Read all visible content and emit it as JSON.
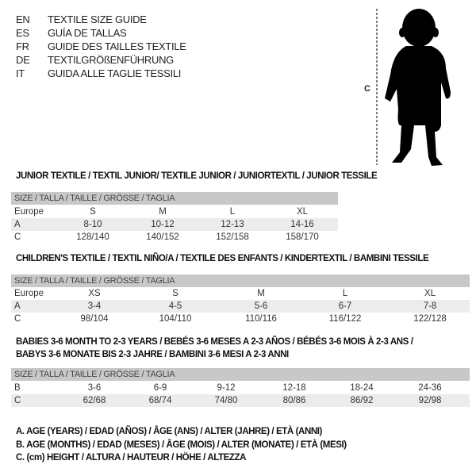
{
  "languages": [
    {
      "code": "EN",
      "text": "TEXTILE SIZE GUIDE"
    },
    {
      "code": "ES",
      "text": "GUÍA DE TALLAS"
    },
    {
      "code": "FR",
      "text": "GUIDE DES TAILLES TEXTILE"
    },
    {
      "code": "DE",
      "text": "TEXTILGRÖßENFÜHRUNG"
    },
    {
      "code": "IT",
      "text": "GUIDA ALLE TAGLIE TESSILI"
    }
  ],
  "figure": {
    "measure_label": "C",
    "icon": "child-silhouette"
  },
  "junior": {
    "title": "JUNIOR TEXTILE / TEXTIL JUNIOR/ TEXTILE JUNIOR / JUNIORTEXTIL / JUNIOR TESSILE",
    "header": "SIZE / TALLA / TAILLE / GRÖSSE / TAGLIA",
    "rows": [
      {
        "label": "Europe",
        "values": [
          "S",
          "M",
          "L",
          "XL"
        ]
      },
      {
        "label": "A",
        "values": [
          "8-10",
          "10-12",
          "12-13",
          "14-16"
        ]
      },
      {
        "label": "C",
        "values": [
          "128/140",
          "140/152",
          "152/158",
          "158/170"
        ]
      }
    ]
  },
  "children": {
    "title": "CHILDREN'S TEXTILE / TEXTIL NIÑO/A / TEXTILE DES ENFANTS / KINDERTEXTIL / BAMBINI TESSILE",
    "header": "SIZE / TALLA / TAILLE / GRÖSSE / TAGLIA",
    "rows": [
      {
        "label": "Europe",
        "values": [
          "XS",
          "S",
          "M",
          "L",
          "XL"
        ]
      },
      {
        "label": "A",
        "values": [
          "3-4",
          "4-5",
          "5-6",
          "6-7",
          "7-8"
        ]
      },
      {
        "label": "C",
        "values": [
          "98/104",
          "104/110",
          "110/116",
          "116/122",
          "122/128"
        ]
      }
    ]
  },
  "babies": {
    "title_line1": "BABIES 3-6 MONTH TO 2-3 YEARS / BEBÉS 3-6 MESES A 2-3 AÑOS / BÉBÉS 3-6 MOIS À 2-3 ANS /",
    "title_line2": "BABYS 3-6 MONATE BIS 2-3 JAHRE / BAMBINI 3-6 MESI A 2-3 ANNI",
    "header": "SIZE / TALLA / TAILLE / GRÖSSE / TAGLIA",
    "rows": [
      {
        "label": "B",
        "values": [
          "3-6",
          "6-9",
          "9-12",
          "12-18",
          "18-24",
          "24-36"
        ]
      },
      {
        "label": "C",
        "values": [
          "62/68",
          "68/74",
          "74/80",
          "80/86",
          "86/92",
          "92/98"
        ]
      }
    ]
  },
  "legend": [
    "A. AGE (YEARS) / EDAD (AÑOS) / ÂGE (ANS) / ALTER (JAHRE) / ETÀ (ANNI)",
    "B. AGE (MONTHS) / EDAD (MESES) / ÂGE (MOIS) / ALTER (MONATE) / ETÀ (MESI)",
    "C. (cm) HEIGHT / ALTURA / HAUTEUR / HÖHE / ALTEZZA"
  ]
}
